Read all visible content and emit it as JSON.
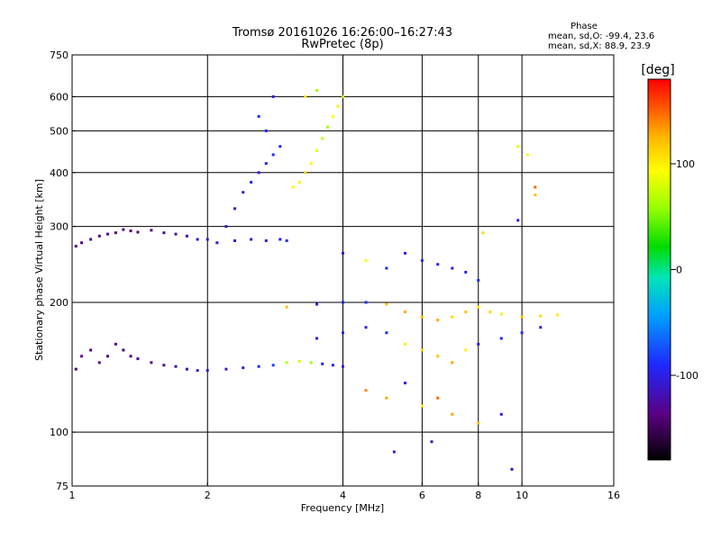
{
  "chart_data": {
    "type": "scatter",
    "title": "Tromsø 20161026 16:26:00–16:27:43",
    "subtitle": "RwPretec (8p)",
    "xlabel": "Frequency [MHz]",
    "ylabel": "Stationary phase Virtual Height [km]",
    "x_scale": "log",
    "y_scale": "log",
    "xlim": [
      1,
      16
    ],
    "ylim": [
      75,
      750
    ],
    "x_ticks": [
      1,
      2,
      4,
      6,
      8,
      10,
      16
    ],
    "y_ticks": [
      75,
      100,
      200,
      300,
      400,
      500,
      600,
      750
    ],
    "grid": true,
    "phase_note": {
      "title": "Phase",
      "line_o": "mean, sd,O: -99.4, 23.6",
      "line_x": "mean, sd,X:  88.9, 23.9"
    },
    "colorbar": {
      "label": "[deg]",
      "range": [
        -180,
        180
      ],
      "ticks": [
        100,
        0,
        -100
      ],
      "tick_labels": [
        "100",
        "0",
        "-100"
      ]
    },
    "series": [
      {
        "values": [
          [
            1.02,
            270,
            -130
          ],
          [
            1.05,
            275,
            -135
          ],
          [
            1.1,
            280,
            -130
          ],
          [
            1.15,
            285,
            -135
          ],
          [
            1.2,
            288,
            -130
          ],
          [
            1.25,
            290,
            -140
          ],
          [
            1.3,
            295,
            -135
          ],
          [
            1.35,
            293,
            -140
          ],
          [
            1.4,
            291,
            -135
          ],
          [
            1.5,
            294,
            -130
          ],
          [
            1.6,
            290,
            -130
          ],
          [
            1.7,
            288,
            -125
          ],
          [
            1.8,
            285,
            -120
          ],
          [
            1.9,
            280,
            -115
          ],
          [
            2.0,
            280,
            -110
          ],
          [
            2.1,
            275,
            -110
          ],
          [
            2.3,
            278,
            -105
          ],
          [
            2.5,
            280,
            -105
          ],
          [
            2.7,
            278,
            -100
          ],
          [
            2.9,
            280,
            -100
          ],
          [
            3.0,
            278,
            -95
          ]
        ]
      },
      {
        "values": [
          [
            1.02,
            140,
            -140
          ],
          [
            1.05,
            150,
            -135
          ],
          [
            1.1,
            155,
            -140
          ],
          [
            1.15,
            145,
            -130
          ],
          [
            1.2,
            150,
            -140
          ],
          [
            1.25,
            160,
            -135
          ],
          [
            1.3,
            155,
            -145
          ],
          [
            1.35,
            150,
            -140
          ],
          [
            1.4,
            148,
            -135
          ],
          [
            1.5,
            145,
            -130
          ],
          [
            1.6,
            143,
            -130
          ],
          [
            1.7,
            142,
            -125
          ],
          [
            1.8,
            140,
            -120
          ],
          [
            1.9,
            139,
            -115
          ],
          [
            2.0,
            139,
            -110
          ],
          [
            2.2,
            140,
            -100
          ],
          [
            2.4,
            141,
            -95
          ],
          [
            2.6,
            142,
            -90
          ],
          [
            2.8,
            143,
            -80
          ],
          [
            3.0,
            145,
            70
          ],
          [
            3.2,
            146,
            80
          ],
          [
            3.4,
            145,
            60
          ],
          [
            3.6,
            144,
            -90
          ],
          [
            3.8,
            143,
            -95
          ],
          [
            4.0,
            142,
            -100
          ]
        ]
      },
      {
        "values": [
          [
            2.2,
            300,
            -110
          ],
          [
            2.3,
            330,
            -105
          ],
          [
            2.4,
            360,
            -100
          ],
          [
            2.5,
            380,
            -95
          ],
          [
            2.6,
            400,
            -100
          ],
          [
            2.7,
            420,
            -95
          ],
          [
            2.8,
            440,
            -90
          ],
          [
            2.9,
            460,
            -95
          ],
          [
            2.7,
            500,
            -90
          ],
          [
            2.6,
            540,
            -95
          ],
          [
            2.8,
            600,
            -100
          ]
        ]
      },
      {
        "values": [
          [
            3.1,
            370,
            95
          ],
          [
            3.2,
            380,
            100
          ],
          [
            3.3,
            400,
            110
          ],
          [
            3.4,
            420,
            90
          ],
          [
            3.5,
            450,
            80
          ],
          [
            3.6,
            480,
            70
          ],
          [
            3.7,
            510,
            60
          ],
          [
            3.8,
            540,
            90
          ],
          [
            3.9,
            570,
            100
          ],
          [
            4.0,
            600,
            80
          ],
          [
            3.5,
            620,
            60
          ],
          [
            3.3,
            600,
            100
          ]
        ]
      },
      {
        "values": [
          [
            3.0,
            195,
            120
          ],
          [
            3.5,
            198,
            -100
          ],
          [
            4.0,
            200,
            -95
          ],
          [
            4.5,
            200,
            -90
          ],
          [
            5.0,
            198,
            120
          ],
          [
            5.5,
            190,
            130
          ],
          [
            6.0,
            185,
            120
          ],
          [
            6.5,
            182,
            130
          ],
          [
            7.0,
            185,
            110
          ],
          [
            7.5,
            190,
            120
          ],
          [
            8.0,
            195,
            100
          ],
          [
            8.5,
            190,
            110
          ],
          [
            9.0,
            188,
            100
          ],
          [
            10.0,
            185,
            120
          ],
          [
            11.0,
            186,
            110
          ],
          [
            12.0,
            187,
            100
          ]
        ]
      },
      {
        "values": [
          [
            3.5,
            165,
            -100
          ],
          [
            4.0,
            170,
            -95
          ],
          [
            4.5,
            175,
            -100
          ],
          [
            5.0,
            170,
            -90
          ],
          [
            5.5,
            160,
            100
          ],
          [
            6.0,
            155,
            110
          ],
          [
            6.5,
            150,
            120
          ],
          [
            7.0,
            145,
            130
          ],
          [
            7.5,
            155,
            100
          ],
          [
            8.0,
            160,
            -100
          ],
          [
            9.0,
            165,
            -95
          ],
          [
            10.0,
            170,
            -90
          ],
          [
            11.0,
            175,
            -100
          ]
        ]
      },
      {
        "values": [
          [
            4.0,
            260,
            -100
          ],
          [
            4.5,
            250,
            90
          ],
          [
            5.0,
            240,
            -95
          ],
          [
            5.5,
            260,
            -100
          ],
          [
            6.0,
            250,
            -90
          ],
          [
            6.5,
            245,
            -95
          ],
          [
            7.0,
            240,
            -100
          ],
          [
            7.5,
            235,
            -95
          ],
          [
            8.0,
            225,
            -90
          ]
        ]
      },
      {
        "values": [
          [
            4.5,
            125,
            140
          ],
          [
            5.0,
            120,
            130
          ],
          [
            5.5,
            130,
            -100
          ],
          [
            6.0,
            115,
            100
          ],
          [
            6.5,
            120,
            150
          ],
          [
            7.0,
            110,
            130
          ],
          [
            8.0,
            105,
            120
          ],
          [
            9.0,
            110,
            -100
          ],
          [
            9.5,
            82,
            -110
          ],
          [
            5.2,
            90,
            -100
          ],
          [
            6.3,
            95,
            -120
          ],
          [
            9.8,
            460,
            80
          ],
          [
            10.3,
            440,
            90
          ],
          [
            10.7,
            370,
            150
          ],
          [
            10.7,
            355,
            120
          ],
          [
            9.8,
            310,
            -100
          ],
          [
            8.2,
            290,
            110
          ]
        ]
      }
    ]
  }
}
